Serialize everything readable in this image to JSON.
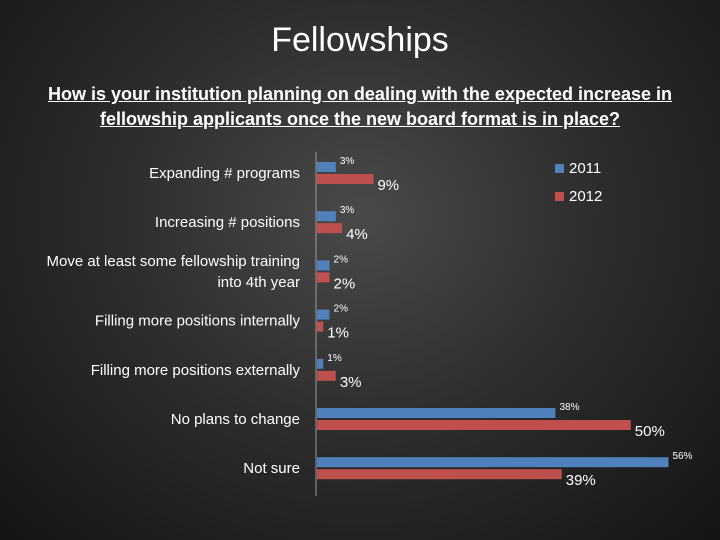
{
  "page": {
    "title": "Fellowships",
    "subtitle": "How is your institution planning on dealing with the expected increase in fellowship applicants once the new board format is in place?"
  },
  "chart_data": {
    "type": "bar",
    "orientation": "horizontal",
    "title": "",
    "xlabel": "",
    "ylabel": "",
    "categories": [
      "Expanding # programs",
      "Increasing # positions",
      "Move at least some fellowship training into 4th year",
      "Filling more positions internally",
      "Filling more positions externally",
      "No plans to change",
      "Not sure"
    ],
    "category_lines": [
      [
        "Expanding # programs"
      ],
      [
        "Increasing # positions"
      ],
      [
        "Move at least some fellowship training",
        "into 4th year"
      ],
      [
        "Filling more positions internally"
      ],
      [
        "Filling more positions externally"
      ],
      [
        "No plans to change"
      ],
      [
        "Not sure"
      ]
    ],
    "series": [
      {
        "name": "2011",
        "values": [
          3,
          3,
          2,
          2,
          1,
          38,
          56
        ],
        "labels": [
          "3%",
          "3%",
          "2%",
          "2%",
          "1%",
          "38%",
          "56%"
        ],
        "color": "#4f81bd"
      },
      {
        "name": "2012",
        "values": [
          9,
          4,
          2,
          1,
          3,
          50,
          39
        ],
        "labels": [
          "9%",
          "4%",
          "2%",
          "1%",
          "3%",
          "50%",
          "39%"
        ],
        "color": "#c0504d"
      }
    ],
    "xlim": [
      0,
      58
    ],
    "grid": false,
    "axis_line": "vertical-left",
    "legend": {
      "placement": "top-right"
    }
  }
}
